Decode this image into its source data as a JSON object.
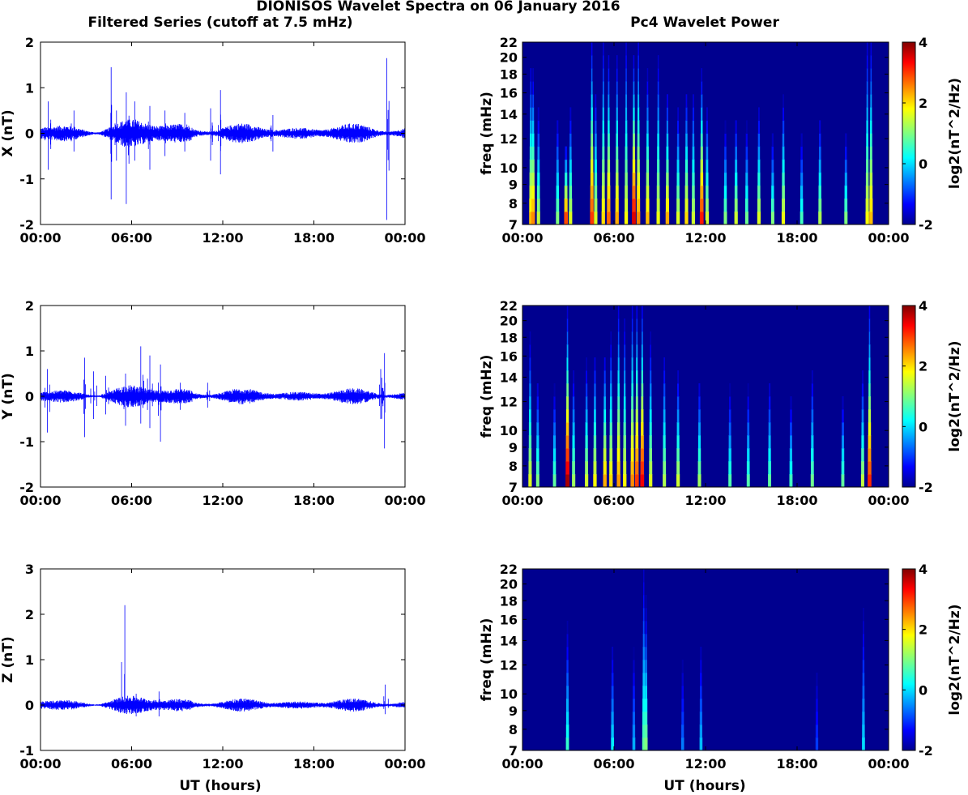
{
  "figure": {
    "title": "DIONISOS Wavelet Spectra on 06 January 2016",
    "left_title": "Filtered Series (cutoff at 7.5 mHz)",
    "right_title": "Pc4 Wavelet Power",
    "xlabel": "UT (hours)"
  },
  "colors": {
    "trace": "#0000ff",
    "axis": "#000000",
    "spectrum_background": "#00008f"
  },
  "chart_data": [
    {
      "type": "line",
      "ylabel": "X (nT)",
      "ylim": [
        -2,
        2
      ],
      "y_ticks": [
        "2",
        "1",
        "0",
        "-1",
        "-2"
      ],
      "x_ticks": [
        "00:00",
        "06:00",
        "12:00",
        "18:00",
        "00:00"
      ],
      "xlim_hours": [
        0,
        24
      ],
      "noise_envelope_nT": 0.15,
      "spikes": [
        {
          "t": 0.5,
          "lo": -0.8,
          "hi": 0.7
        },
        {
          "t": 2.2,
          "lo": -0.4,
          "hi": 0.5
        },
        {
          "t": 4.65,
          "lo": -1.45,
          "hi": 1.45
        },
        {
          "t": 5.0,
          "lo": -0.6,
          "hi": 0.5
        },
        {
          "t": 5.65,
          "lo": -1.55,
          "hi": 0.9
        },
        {
          "t": 6.2,
          "lo": -0.6,
          "hi": 0.7
        },
        {
          "t": 7.2,
          "lo": -0.8,
          "hi": 0.6
        },
        {
          "t": 8.2,
          "lo": -0.5,
          "hi": 0.5
        },
        {
          "t": 9.5,
          "lo": -0.4,
          "hi": 0.45
        },
        {
          "t": 11.2,
          "lo": -0.6,
          "hi": 0.55
        },
        {
          "t": 11.85,
          "lo": -0.9,
          "hi": 0.95
        },
        {
          "t": 15.3,
          "lo": -0.4,
          "hi": 0.4
        },
        {
          "t": 22.8,
          "lo": -1.9,
          "hi": 1.65
        }
      ]
    },
    {
      "type": "heatmap",
      "ylabel": "freq (mHz)",
      "colorbar_label": "log2(nT^2/Hz)",
      "x_ticks": [
        "00:00",
        "06:00",
        "12:00",
        "18:00",
        "00:00"
      ],
      "y_ticks": [
        "22",
        "20",
        "18",
        "16",
        "14",
        "12",
        "10",
        "9",
        "8",
        "7"
      ],
      "ylim_mHz": [
        7,
        22
      ],
      "log_freq_axis": true,
      "colorbar_ticks": [
        "4",
        "2",
        "0",
        "-2"
      ],
      "clim": [
        -2,
        4
      ],
      "streaks": [
        {
          "t": 0.55,
          "p": 2.2,
          "h": 0.85
        },
        {
          "t": 0.7,
          "p": 2.5,
          "h": 0.8
        },
        {
          "t": 1.05,
          "p": 1.4,
          "h": 0.6
        },
        {
          "t": 2.3,
          "p": 1.0,
          "h": 0.55
        },
        {
          "t": 2.85,
          "p": 2.9,
          "h": 0.4
        },
        {
          "t": 3.15,
          "p": 1.6,
          "h": 0.6
        },
        {
          "t": 4.55,
          "p": 3.0,
          "h": 1.0
        },
        {
          "t": 4.8,
          "p": 1.6,
          "h": 0.7
        },
        {
          "t": 5.3,
          "p": 2.0,
          "h": 1.0
        },
        {
          "t": 5.65,
          "p": 2.7,
          "h": 0.9
        },
        {
          "t": 6.2,
          "p": 2.3,
          "h": 0.9
        },
        {
          "t": 6.8,
          "p": 1.8,
          "h": 1.0
        },
        {
          "t": 7.3,
          "p": 3.5,
          "h": 0.9
        },
        {
          "t": 7.6,
          "p": 2.5,
          "h": 1.0
        },
        {
          "t": 8.2,
          "p": 2.2,
          "h": 0.8
        },
        {
          "t": 8.9,
          "p": 1.7,
          "h": 0.9
        },
        {
          "t": 9.5,
          "p": 2.3,
          "h": 0.7
        },
        {
          "t": 10.2,
          "p": 1.6,
          "h": 0.6
        },
        {
          "t": 10.75,
          "p": 2.0,
          "h": 0.7
        },
        {
          "t": 11.2,
          "p": 1.5,
          "h": 0.7
        },
        {
          "t": 11.75,
          "p": 3.2,
          "h": 0.8
        },
        {
          "t": 12.1,
          "p": 1.5,
          "h": 0.6
        },
        {
          "t": 13.3,
          "p": 1.0,
          "h": 0.5
        },
        {
          "t": 14.0,
          "p": 1.5,
          "h": 0.55
        },
        {
          "t": 14.7,
          "p": 0.9,
          "h": 0.5
        },
        {
          "t": 15.5,
          "p": 1.6,
          "h": 0.6
        },
        {
          "t": 16.4,
          "p": 1.0,
          "h": 0.45
        },
        {
          "t": 17.1,
          "p": 1.7,
          "h": 0.65
        },
        {
          "t": 18.3,
          "p": 0.6,
          "h": 0.45
        },
        {
          "t": 19.5,
          "p": 1.3,
          "h": 0.55
        },
        {
          "t": 21.2,
          "p": 1.0,
          "h": 0.45
        },
        {
          "t": 22.6,
          "p": 1.8,
          "h": 1.0
        },
        {
          "t": 22.85,
          "p": 2.2,
          "h": 1.0
        }
      ]
    },
    {
      "type": "line",
      "ylabel": "Y (nT)",
      "ylim": [
        -2,
        2
      ],
      "y_ticks": [
        "2",
        "1",
        "0",
        "-1",
        "-2"
      ],
      "x_ticks": [
        "00:00",
        "06:00",
        "12:00",
        "18:00",
        "00:00"
      ],
      "xlim_hours": [
        0,
        24
      ],
      "noise_envelope_nT": 0.12,
      "spikes": [
        {
          "t": 0.45,
          "lo": -0.8,
          "hi": 0.6
        },
        {
          "t": 2.9,
          "lo": -0.9,
          "hi": 0.85
        },
        {
          "t": 3.5,
          "lo": -0.5,
          "hi": 0.55
        },
        {
          "t": 4.3,
          "lo": -0.4,
          "hi": 0.45
        },
        {
          "t": 5.6,
          "lo": -0.65,
          "hi": 0.5
        },
        {
          "t": 6.6,
          "lo": -0.6,
          "hi": 1.1
        },
        {
          "t": 7.2,
          "lo": -0.7,
          "hi": 0.9
        },
        {
          "t": 7.9,
          "lo": -1.0,
          "hi": 0.7
        },
        {
          "t": 9.2,
          "lo": -0.3,
          "hi": 0.3
        },
        {
          "t": 11.0,
          "lo": -0.25,
          "hi": 0.3
        },
        {
          "t": 22.4,
          "lo": -0.5,
          "hi": 0.6
        },
        {
          "t": 22.65,
          "lo": -1.15,
          "hi": 0.95
        }
      ]
    },
    {
      "type": "heatmap",
      "ylabel": "freq (mHz)",
      "colorbar_label": "log2(nT^2/Hz)",
      "x_ticks": [
        "00:00",
        "06:00",
        "12:00",
        "18:00",
        "00:00"
      ],
      "y_ticks": [
        "22",
        "20",
        "18",
        "16",
        "14",
        "12",
        "10",
        "9",
        "8",
        "7"
      ],
      "ylim_mHz": [
        7,
        22
      ],
      "log_freq_axis": true,
      "colorbar_ticks": [
        "4",
        "2",
        "0",
        "-2"
      ],
      "clim": [
        -2,
        4
      ],
      "streaks": [
        {
          "t": 0.5,
          "p": 1.6,
          "h": 0.8
        },
        {
          "t": 1.0,
          "p": 1.0,
          "h": 0.55
        },
        {
          "t": 2.1,
          "p": 0.8,
          "h": 0.5
        },
        {
          "t": 2.95,
          "p": 3.8,
          "h": 0.95
        },
        {
          "t": 3.35,
          "p": 1.2,
          "h": 0.6
        },
        {
          "t": 4.2,
          "p": 1.5,
          "h": 0.65
        },
        {
          "t": 4.75,
          "p": 1.8,
          "h": 0.7
        },
        {
          "t": 5.4,
          "p": 2.3,
          "h": 0.7
        },
        {
          "t": 5.8,
          "p": 2.0,
          "h": 0.8
        },
        {
          "t": 6.3,
          "p": 2.4,
          "h": 1.0
        },
        {
          "t": 6.7,
          "p": 1.8,
          "h": 0.9
        },
        {
          "t": 7.2,
          "p": 2.5,
          "h": 1.0
        },
        {
          "t": 7.5,
          "p": 3.0,
          "h": 1.0
        },
        {
          "t": 7.85,
          "p": 3.4,
          "h": 1.0
        },
        {
          "t": 8.4,
          "p": 1.6,
          "h": 0.8
        },
        {
          "t": 9.3,
          "p": 1.3,
          "h": 0.7
        },
        {
          "t": 10.2,
          "p": 1.5,
          "h": 0.6
        },
        {
          "t": 11.6,
          "p": 1.2,
          "h": 0.55
        },
        {
          "t": 13.6,
          "p": 0.7,
          "h": 0.5
        },
        {
          "t": 14.8,
          "p": 0.7,
          "h": 0.5
        },
        {
          "t": 16.2,
          "p": 0.8,
          "h": 0.55
        },
        {
          "t": 17.6,
          "p": 0.6,
          "h": 0.45
        },
        {
          "t": 19.0,
          "p": 0.9,
          "h": 0.6
        },
        {
          "t": 21.0,
          "p": 0.8,
          "h": 0.45
        },
        {
          "t": 22.3,
          "p": 1.4,
          "h": 0.6
        },
        {
          "t": 22.75,
          "p": 3.1,
          "h": 1.0
        }
      ]
    },
    {
      "type": "line",
      "ylabel": "Z (nT)",
      "ylim": [
        -1,
        3
      ],
      "y_ticks": [
        "3",
        "2",
        "1",
        "0",
        "-1"
      ],
      "x_ticks": [
        "00:00",
        "06:00",
        "12:00",
        "18:00",
        "00:00"
      ],
      "xlim_hours": [
        0,
        24
      ],
      "noise_envelope_nT": 0.1,
      "spikes": [
        {
          "t": 5.55,
          "lo": -0.15,
          "hi": 2.2
        },
        {
          "t": 6.3,
          "lo": -0.25,
          "hi": 0.25
        },
        {
          "t": 7.8,
          "lo": -0.25,
          "hi": 0.3
        },
        {
          "t": 22.7,
          "lo": -0.2,
          "hi": 0.45
        }
      ]
    },
    {
      "type": "heatmap",
      "ylabel": "freq (mHz)",
      "colorbar_label": "log2(nT^2/Hz)",
      "x_ticks": [
        "00:00",
        "06:00",
        "12:00",
        "18:00",
        "00:00"
      ],
      "y_ticks": [
        "22",
        "20",
        "18",
        "16",
        "14",
        "12",
        "10",
        "9",
        "8",
        "7"
      ],
      "ylim_mHz": [
        7,
        22
      ],
      "log_freq_axis": true,
      "colorbar_ticks": [
        "4",
        "2",
        "0",
        "-2"
      ],
      "clim": [
        -2,
        4
      ],
      "streaks": [
        {
          "t": 2.95,
          "p": 0.5,
          "h": 0.65
        },
        {
          "t": 5.9,
          "p": 0.1,
          "h": 0.55
        },
        {
          "t": 7.3,
          "p": -0.3,
          "h": 0.5
        },
        {
          "t": 7.95,
          "p": 0.8,
          "h": 1.0
        },
        {
          "t": 8.1,
          "p": 1.0,
          "h": 0.8
        },
        {
          "t": 10.5,
          "p": -0.6,
          "h": 0.45
        },
        {
          "t": 11.7,
          "p": -0.2,
          "h": 0.55
        },
        {
          "t": 19.3,
          "p": -1.0,
          "h": 0.4
        },
        {
          "t": 22.35,
          "p": 0.0,
          "h": 0.75
        }
      ]
    }
  ]
}
